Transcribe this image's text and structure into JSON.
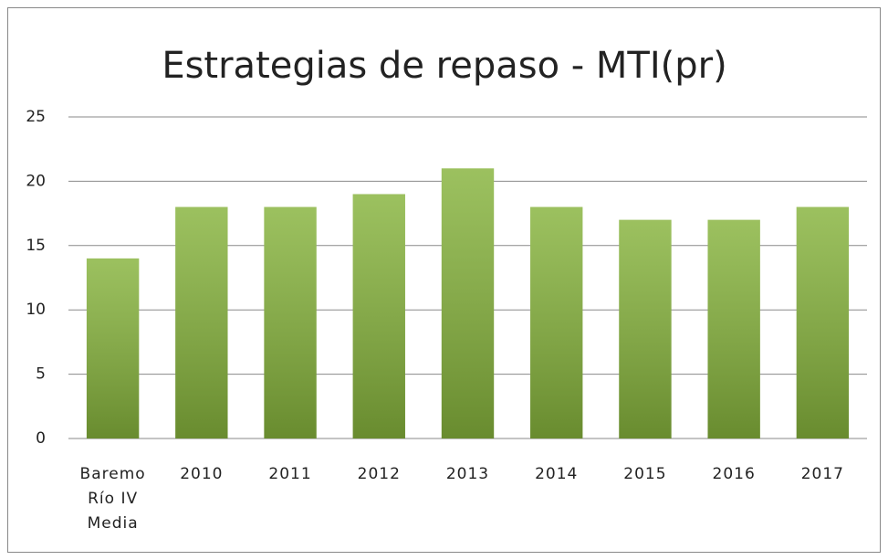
{
  "chart_data": {
    "type": "bar",
    "title": "Estrategias de repaso - MTI(pr)",
    "categories": [
      "Baremo\nRío IV\nMedia",
      "2010",
      "2011",
      "2012",
      "2013",
      "2014",
      "2015",
      "2016",
      "2017"
    ],
    "values": [
      14,
      18,
      18,
      19,
      21,
      18,
      17,
      17,
      18
    ],
    "color": "#86b33c",
    "ylim": [
      0,
      25
    ],
    "yticks": [
      0,
      5,
      10,
      15,
      20,
      25
    ],
    "grid": true
  }
}
